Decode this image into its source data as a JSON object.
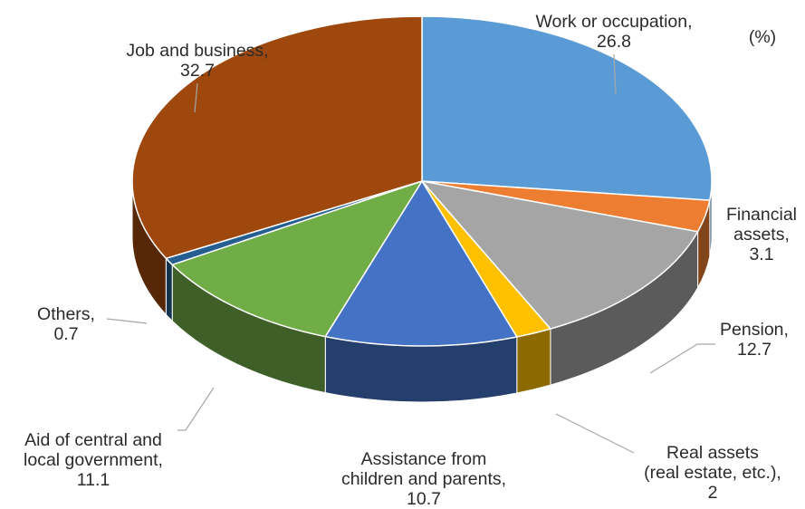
{
  "chart_data": {
    "type": "pie",
    "style": "3d",
    "title": "",
    "unit_label": "(%)",
    "slices": [
      {
        "label_lines": [
          "Work or occupation,",
          "26.8"
        ],
        "value": 26.8,
        "color": "#5b9bd5"
      },
      {
        "label_lines": [
          "Financial",
          "assets,",
          "3.1"
        ],
        "value": 3.1,
        "color": "#ed7d31"
      },
      {
        "label_lines": [
          "Pension,",
          "12.7"
        ],
        "value": 12.7,
        "color": "#a5a5a5"
      },
      {
        "label_lines": [
          "Real assets",
          "(real estate, etc.),",
          "2"
        ],
        "value": 2,
        "color": "#ffc000"
      },
      {
        "label_lines": [
          "Assistance from",
          "children and parents,",
          "10.7"
        ],
        "value": 10.7,
        "color": "#4472c4"
      },
      {
        "label_lines": [
          "Aid of central and",
          "local government,",
          "11.1"
        ],
        "value": 11.1,
        "color": "#70ad47"
      },
      {
        "label_lines": [
          "Others,",
          "0.7"
        ],
        "value": 0.7,
        "color": "#255e91"
      },
      {
        "label_lines": [
          "Job and business,",
          "32.7"
        ],
        "value": 32.7,
        "color": "#9e480e"
      }
    ]
  }
}
